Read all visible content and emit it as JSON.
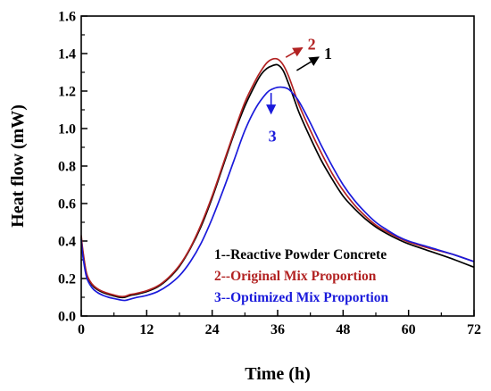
{
  "chart_data": {
    "type": "line",
    "title": "",
    "xlabel": "Time (h)",
    "ylabel": "Heat flow (mW)",
    "xlim": [
      0,
      72
    ],
    "ylim": [
      0,
      1.6
    ],
    "x_ticks": [
      0,
      12,
      24,
      36,
      48,
      60,
      72
    ],
    "y_ticks": [
      0.0,
      0.2,
      0.4,
      0.6,
      0.8,
      1.0,
      1.2,
      1.4,
      1.6
    ],
    "grid": false,
    "legend": {
      "position": "bottom-right",
      "entries": [
        {
          "text": "1--Reactive Powder Concrete",
          "color": "#000000"
        },
        {
          "text": "2--Original Mix Proportion",
          "color": "#b22222"
        },
        {
          "text": "3--Optimized Mix Proportion",
          "color": "#1a1adb"
        }
      ]
    },
    "series": [
      {
        "color": "#000000",
        "x": [
          0,
          0.3,
          1,
          2,
          3,
          4,
          5,
          6,
          7,
          8,
          9,
          10,
          12,
          14,
          16,
          18,
          20,
          22,
          24,
          26,
          28,
          30,
          32,
          33,
          34,
          35,
          36,
          37,
          38,
          39,
          40,
          42,
          44,
          46,
          48,
          50,
          52,
          54,
          56,
          58,
          60,
          64,
          68,
          72
        ],
        "y": [
          0.42,
          0.34,
          0.22,
          0.165,
          0.14,
          0.125,
          0.115,
          0.107,
          0.1,
          0.1,
          0.11,
          0.115,
          0.13,
          0.155,
          0.2,
          0.265,
          0.36,
          0.48,
          0.63,
          0.8,
          0.97,
          1.12,
          1.24,
          1.29,
          1.32,
          1.335,
          1.34,
          1.31,
          1.24,
          1.16,
          1.08,
          0.95,
          0.83,
          0.73,
          0.64,
          0.575,
          0.52,
          0.475,
          0.44,
          0.41,
          0.385,
          0.345,
          0.305,
          0.26
        ]
      },
      {
        "color": "#b22222",
        "x": [
          0,
          0.3,
          1,
          2,
          3,
          4,
          5,
          6,
          7,
          8,
          9,
          10,
          12,
          14,
          16,
          18,
          20,
          22,
          24,
          26,
          28,
          30,
          32,
          33,
          34,
          35,
          36,
          37,
          38,
          39,
          40,
          42,
          44,
          46,
          48,
          50,
          52,
          54,
          56,
          58,
          60,
          64,
          68,
          72
        ],
        "y": [
          0.43,
          0.35,
          0.225,
          0.17,
          0.145,
          0.13,
          0.12,
          0.112,
          0.105,
          0.105,
          0.115,
          0.12,
          0.135,
          0.16,
          0.205,
          0.27,
          0.365,
          0.49,
          0.64,
          0.81,
          0.98,
          1.14,
          1.26,
          1.31,
          1.35,
          1.37,
          1.37,
          1.34,
          1.28,
          1.2,
          1.12,
          0.99,
          0.87,
          0.76,
          0.67,
          0.595,
          0.535,
          0.485,
          0.45,
          0.42,
          0.395,
          0.36,
          0.33,
          0.29
        ]
      },
      {
        "color": "#1a1adb",
        "x": [
          0,
          0.3,
          1,
          2,
          3,
          4,
          5,
          6,
          7,
          8,
          9,
          10,
          12,
          14,
          16,
          18,
          20,
          22,
          24,
          26,
          28,
          30,
          32,
          34,
          35,
          36,
          37,
          38,
          39,
          40,
          42,
          44,
          46,
          48,
          50,
          52,
          54,
          56,
          58,
          60,
          64,
          68,
          72
        ],
        "y": [
          0.41,
          0.32,
          0.205,
          0.15,
          0.125,
          0.11,
          0.1,
          0.093,
          0.087,
          0.083,
          0.09,
          0.098,
          0.11,
          0.13,
          0.165,
          0.215,
          0.29,
          0.39,
          0.52,
          0.67,
          0.83,
          0.99,
          1.11,
          1.19,
          1.21,
          1.22,
          1.22,
          1.21,
          1.18,
          1.14,
          1.03,
          0.91,
          0.8,
          0.7,
          0.62,
          0.555,
          0.5,
          0.46,
          0.425,
          0.4,
          0.365,
          0.33,
          0.29
        ]
      }
    ],
    "annotations": [
      {
        "text": "2",
        "color": "#b22222",
        "x": 41.5,
        "y": 1.45,
        "arrow_to": [
          37.5,
          1.38
        ]
      },
      {
        "text": "1",
        "color": "#000000",
        "x": 44.5,
        "y": 1.4,
        "arrow_to": [
          39.5,
          1.31
        ]
      },
      {
        "text": "3",
        "color": "#1a1adb",
        "x": 34.3,
        "y": 0.96,
        "arrow_from": [
          34.8,
          1.19
        ],
        "arrow_to": [
          34.8,
          1.08
        ]
      }
    ]
  }
}
